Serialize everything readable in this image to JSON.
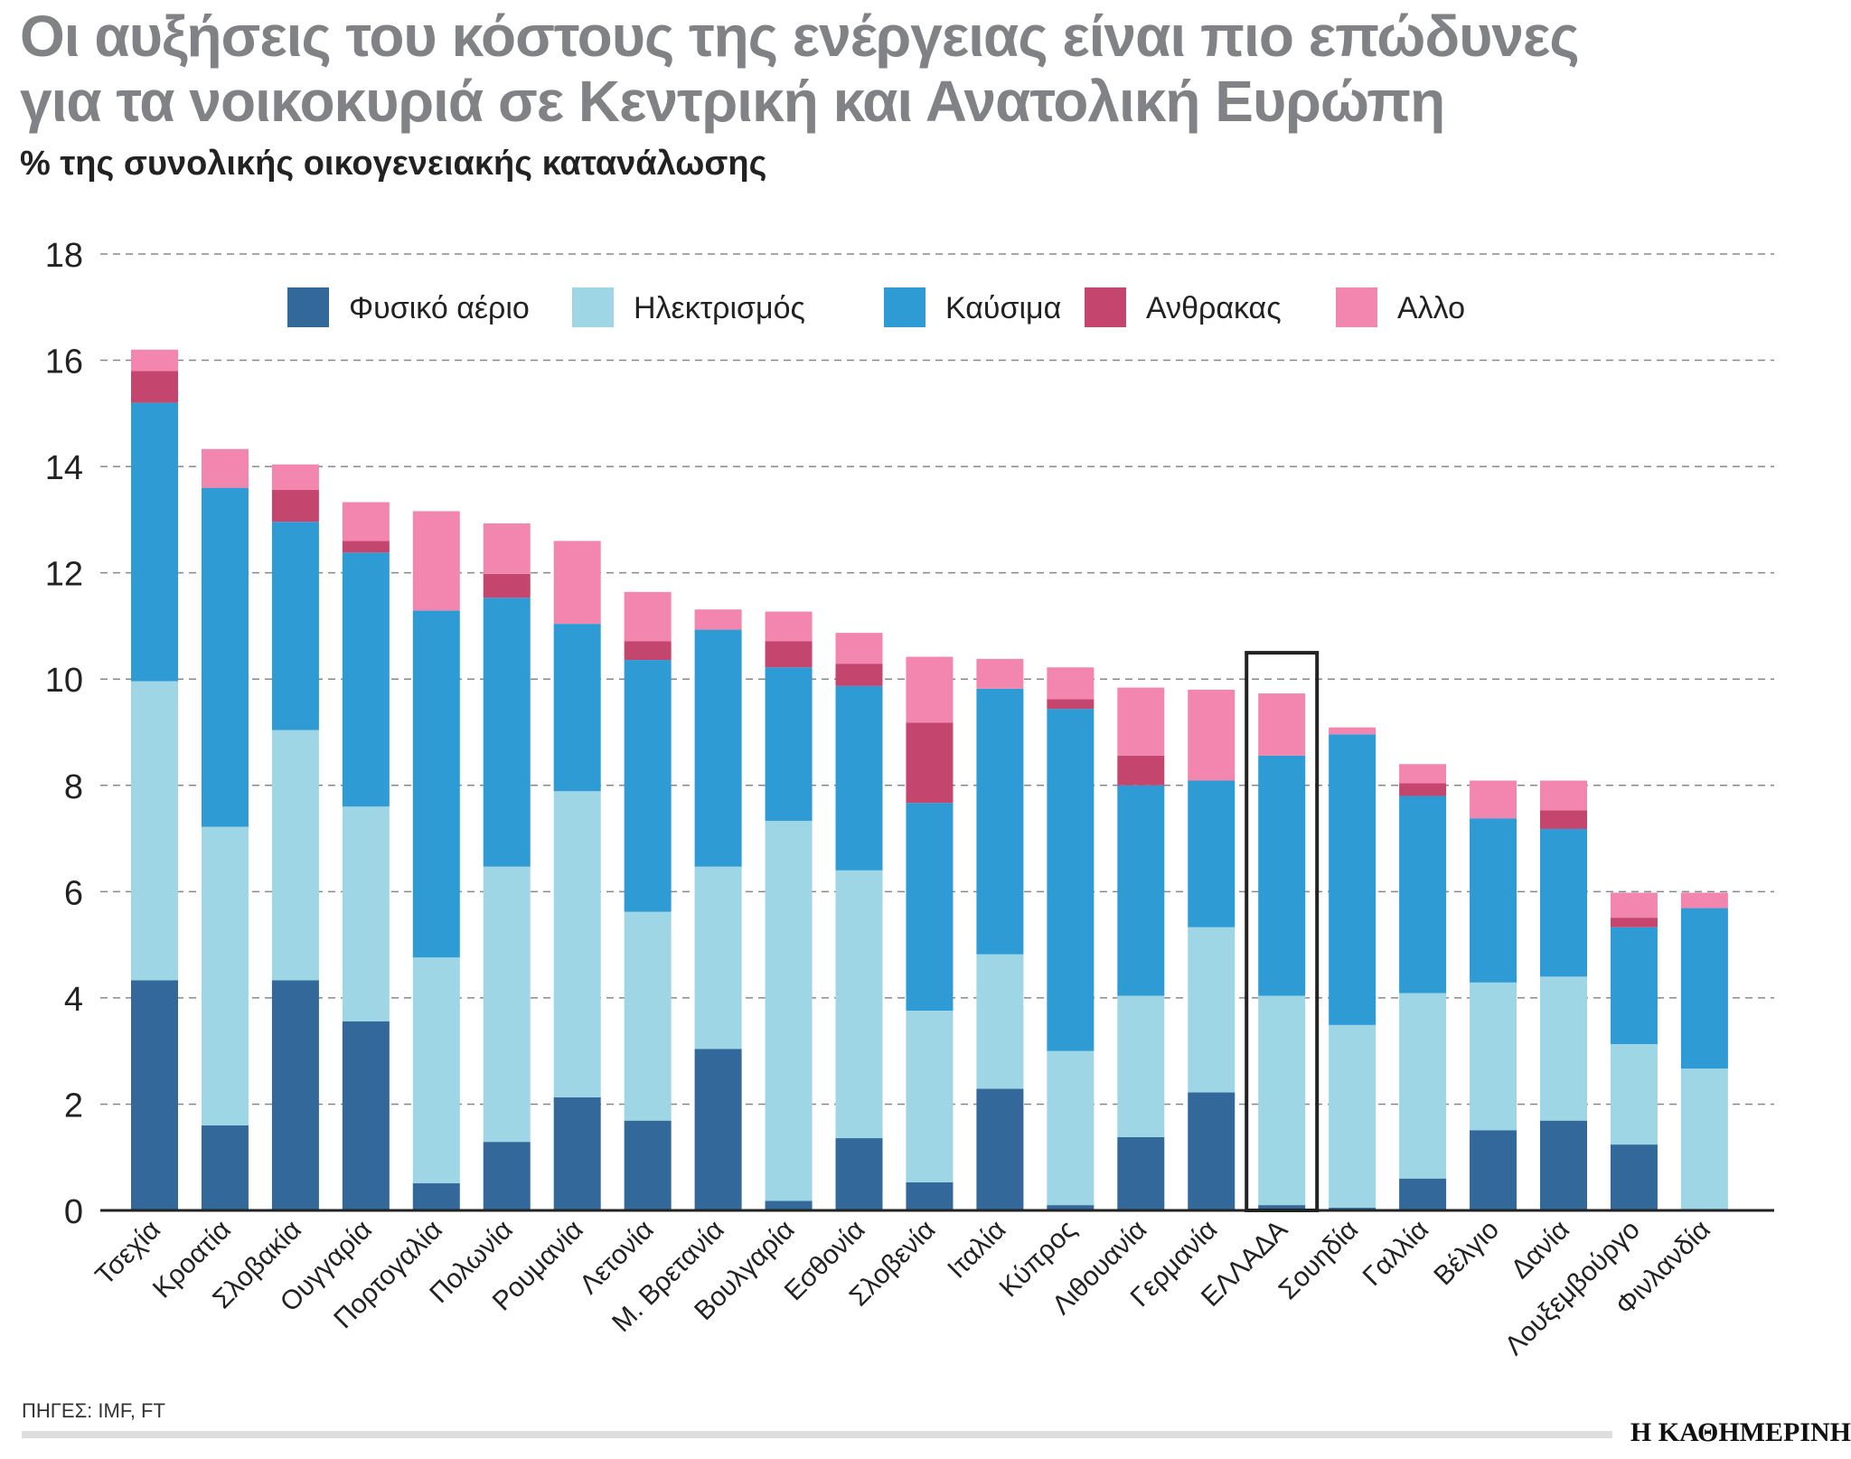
{
  "title_lines": [
    "Οι αυξήσεις του κόστους της ενέργειας είναι πιο επώδυνες",
    "για τα νοικοκυριά σε Κεντρική και Ανατολική Ευρώπη"
  ],
  "subtitle": "% της συνολικής οικογενειακής κατανάλωσης",
  "source": "ΠΗΓΕΣ: IMF, FT",
  "logo": "Η ΚΑΘΗΜΕΡΙΝΗ",
  "chart_data": {
    "type": "bar",
    "stacked": true,
    "ylim": [
      0,
      18
    ],
    "yticks": [
      0,
      2,
      4,
      6,
      8,
      10,
      12,
      14,
      16,
      18
    ],
    "grid": true,
    "legend_position": "top",
    "highlight": "ΕΛΛΑΔΑ",
    "categories": [
      "Τσεχία",
      "Κροατία",
      "Σλοβακία",
      "Ουγγαρία",
      "Πορτογαλία",
      "Πολωνία",
      "Ρουμανία",
      "Λετονία",
      "Μ. Βρετανία",
      "Βουλγαρία",
      "Εσθονία",
      "Σλοβενία",
      "Ιταλία",
      "Κύπρος",
      "Λιθουανία",
      "Γερμανία",
      "ΕΛΛΑΔΑ",
      "Σουηδία",
      "Γαλλία",
      "Βέλγιο",
      "Δανία",
      "Λουξεμβούργο",
      "Φινλανδία"
    ],
    "series": [
      {
        "name": "Φυσικό αέριο",
        "color": "#33689a",
        "values": [
          4.33,
          1.6,
          4.33,
          3.56,
          0.51,
          1.29,
          2.13,
          1.69,
          3.04,
          0.18,
          1.36,
          0.53,
          2.29,
          0.1,
          1.38,
          2.22,
          0.1,
          0.05,
          0.6,
          1.51,
          1.69,
          1.24,
          0
        ]
      },
      {
        "name": "Ηλεκτρισμός",
        "color": "#9fd6e6",
        "values": [
          5.63,
          5.62,
          4.71,
          4.04,
          4.25,
          5.18,
          5.76,
          3.93,
          3.43,
          7.15,
          5.04,
          3.23,
          2.53,
          2.9,
          2.66,
          3.11,
          3.94,
          3.44,
          3.49,
          2.78,
          2.71,
          1.89,
          2.67
        ]
      },
      {
        "name": "Καύσιμα",
        "color": "#2e9bd5",
        "values": [
          5.24,
          6.38,
          3.92,
          4.78,
          6.53,
          5.06,
          3.15,
          4.74,
          4.46,
          2.89,
          3.47,
          3.91,
          5.0,
          6.44,
          3.96,
          2.76,
          4.52,
          5.47,
          3.71,
          3.09,
          2.78,
          2.2,
          3.02
        ]
      },
      {
        "name": "Ανθρακας",
        "color": "#c4456e",
        "values": [
          0.6,
          0,
          0.6,
          0.22,
          0,
          0.45,
          0,
          0.35,
          0,
          0.49,
          0.42,
          1.51,
          0,
          0.18,
          0.56,
          0,
          0,
          0,
          0.24,
          0,
          0.35,
          0.18,
          0
        ]
      },
      {
        "name": "Αλλο",
        "color": "#f386ae",
        "values": [
          0.4,
          0.73,
          0.48,
          0.73,
          1.87,
          0.95,
          1.56,
          0.93,
          0.38,
          0.56,
          0.58,
          1.24,
          0.56,
          0.6,
          1.28,
          1.71,
          1.17,
          0.13,
          0.36,
          0.71,
          0.56,
          0.47,
          0.29
        ]
      }
    ]
  }
}
